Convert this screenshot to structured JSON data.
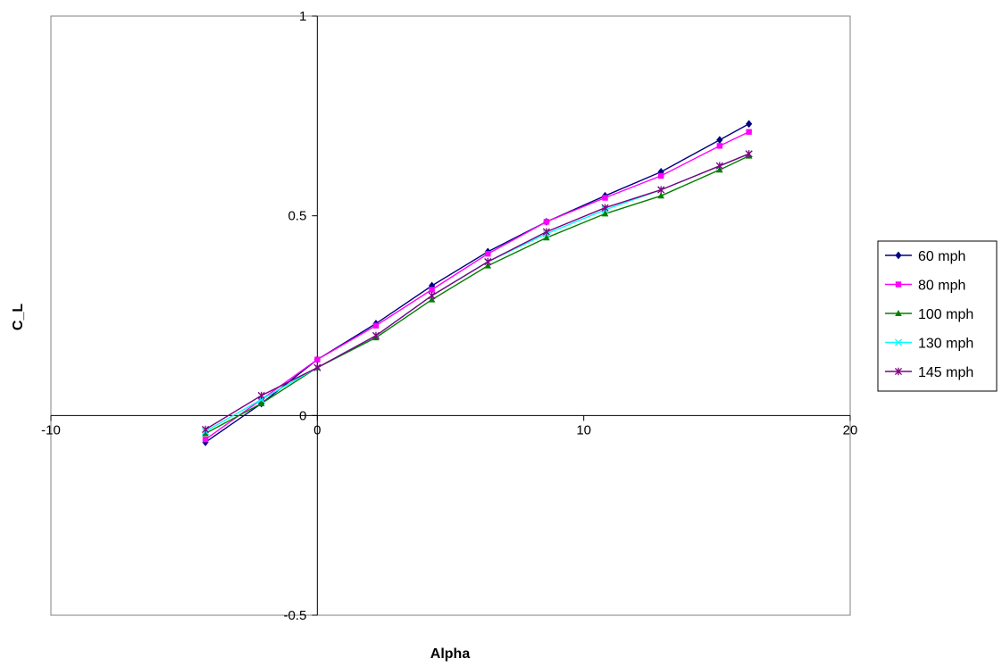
{
  "chart_data": {
    "type": "line",
    "title": "",
    "xlabel": "Alpha",
    "ylabel": "C_L",
    "xlim": [
      -10,
      20
    ],
    "ylim": [
      -0.5,
      1
    ],
    "x_ticks": [
      -10,
      0,
      10,
      20
    ],
    "y_ticks": [
      -0.5,
      0,
      0.5,
      1
    ],
    "grid": false,
    "legend_position": "right",
    "series": [
      {
        "name": "60 mph",
        "color": "#000080",
        "marker": "diamond",
        "x": [
          -4.2,
          -2.1,
          0,
          2.2,
          4.3,
          6.4,
          8.6,
          10.8,
          12.9,
          15.1,
          16.2
        ],
        "y": [
          -0.067,
          0.03,
          0.14,
          0.23,
          0.325,
          0.41,
          0.485,
          0.55,
          0.61,
          0.69,
          0.73
        ]
      },
      {
        "name": "80 mph",
        "color": "#FF00FF",
        "marker": "square",
        "x": [
          -4.2,
          -2.1,
          0,
          2.2,
          4.3,
          6.4,
          8.6,
          10.8,
          12.9,
          15.1,
          16.2
        ],
        "y": [
          -0.06,
          0.04,
          0.14,
          0.225,
          0.315,
          0.405,
          0.485,
          0.545,
          0.6,
          0.675,
          0.71
        ]
      },
      {
        "name": "100 mph",
        "color": "#008000",
        "marker": "triangle",
        "x": [
          -4.2,
          -2.1,
          0,
          2.2,
          4.3,
          6.4,
          8.6,
          10.8,
          12.9,
          15.1,
          16.2
        ],
        "y": [
          -0.045,
          0.03,
          0.12,
          0.195,
          0.29,
          0.375,
          0.445,
          0.505,
          0.55,
          0.615,
          0.65
        ]
      },
      {
        "name": "130 mph",
        "color": "#00FFFF",
        "marker": "x",
        "x": [
          -4.2,
          -2.1,
          0,
          2.2,
          4.3,
          6.4,
          8.6,
          10.8,
          12.9,
          15.1,
          16.2
        ],
        "y": [
          -0.04,
          0.04,
          0.12,
          0.2,
          0.3,
          0.385,
          0.455,
          0.515,
          0.565,
          0.625,
          0.655
        ]
      },
      {
        "name": "145 mph",
        "color": "#800080",
        "marker": "star",
        "x": [
          -4.2,
          -2.1,
          0,
          2.2,
          4.3,
          6.4,
          8.6,
          10.8,
          12.9,
          15.1,
          16.2
        ],
        "y": [
          -0.035,
          0.05,
          0.12,
          0.2,
          0.3,
          0.385,
          0.46,
          0.52,
          0.565,
          0.625,
          0.655
        ]
      }
    ]
  }
}
